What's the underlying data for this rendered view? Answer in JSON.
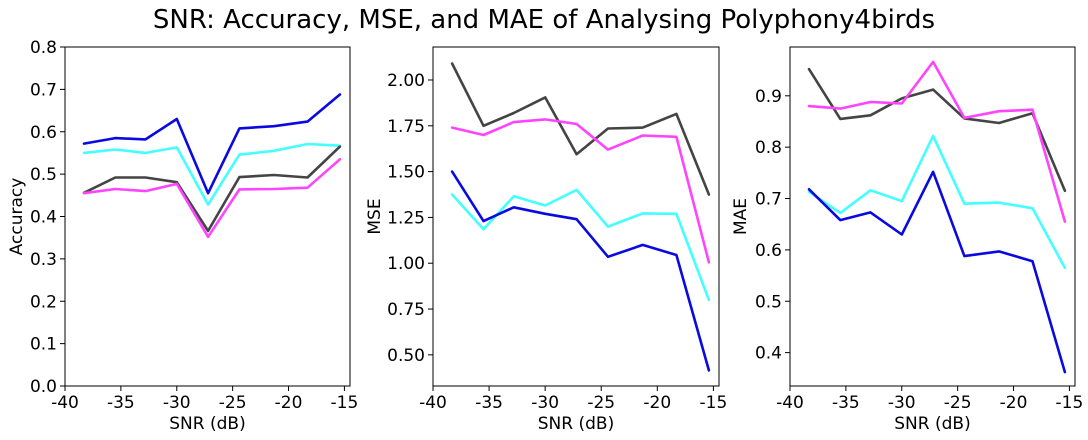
{
  "figure": {
    "title": "SNR: Accuracy, MSE, and MAE of Analysing Polyphony4birds"
  },
  "chart_data": [
    {
      "type": "line",
      "xlabel": "SNR (dB)",
      "ylabel": "Accuracy",
      "xlim": [
        -40,
        -14.5
      ],
      "ylim": [
        0.0,
        0.8
      ],
      "xticks": [
        -40,
        -35,
        -30,
        -25,
        -20,
        -15
      ],
      "xtick_labels": [
        "-40",
        "-35",
        "-30",
        "-25",
        "-20",
        "-15"
      ],
      "yticks": [
        0.0,
        0.1,
        0.2,
        0.3,
        0.4,
        0.5,
        0.6,
        0.7,
        0.8
      ],
      "ytick_labels": [
        "0.0",
        "0.1",
        "0.2",
        "0.3",
        "0.4",
        "0.5",
        "0.6",
        "0.7",
        "0.8"
      ],
      "grid": false,
      "x": [
        -38.3,
        -35.5,
        -32.8,
        -30.0,
        -27.2,
        -24.4,
        -21.3,
        -18.3,
        -15.4
      ],
      "series": [
        {
          "color": "#0a0ae0",
          "values": [
            0.572,
            0.585,
            0.582,
            0.63,
            0.455,
            0.608,
            0.613,
            0.624,
            0.688
          ]
        },
        {
          "color": "#44ffff",
          "values": [
            0.55,
            0.558,
            0.55,
            0.563,
            0.428,
            0.546,
            0.555,
            0.571,
            0.567
          ]
        },
        {
          "color": "#444444",
          "values": [
            0.456,
            0.492,
            0.492,
            0.481,
            0.366,
            0.493,
            0.498,
            0.492,
            0.565
          ]
        },
        {
          "color": "#ff44ff",
          "values": [
            0.455,
            0.465,
            0.46,
            0.477,
            0.352,
            0.464,
            0.465,
            0.468,
            0.535
          ]
        }
      ]
    },
    {
      "type": "line",
      "xlabel": "SNR (dB)",
      "ylabel": "MSE",
      "xlim": [
        -40,
        -14.5
      ],
      "ylim": [
        0.33,
        2.18
      ],
      "xticks": [
        -40,
        -35,
        -30,
        -25,
        -20,
        -15
      ],
      "xtick_labels": [
        "-40",
        "-35",
        "-30",
        "-25",
        "-20",
        "-15"
      ],
      "yticks": [
        0.5,
        0.75,
        1.0,
        1.25,
        1.5,
        1.75,
        2.0
      ],
      "ytick_labels": [
        "0.50",
        "0.75",
        "1.00",
        "1.25",
        "1.50",
        "1.75",
        "2.00"
      ],
      "grid": false,
      "x": [
        -38.3,
        -35.5,
        -32.8,
        -30.0,
        -27.2,
        -24.4,
        -21.3,
        -18.3,
        -15.4
      ],
      "series": [
        {
          "color": "#444444",
          "values": [
            2.09,
            1.75,
            1.82,
            1.905,
            1.595,
            1.735,
            1.74,
            1.815,
            1.375
          ]
        },
        {
          "color": "#ff44ff",
          "values": [
            1.74,
            1.7,
            1.77,
            1.785,
            1.76,
            1.62,
            1.697,
            1.69,
            1.005
          ]
        },
        {
          "color": "#44ffff",
          "values": [
            1.375,
            1.185,
            1.365,
            1.315,
            1.4,
            1.2,
            1.272,
            1.27,
            0.8
          ]
        },
        {
          "color": "#0a0ae0",
          "values": [
            1.5,
            1.23,
            1.305,
            1.27,
            1.24,
            1.035,
            1.1,
            1.045,
            0.415
          ]
        }
      ]
    },
    {
      "type": "line",
      "xlabel": "SNR (dB)",
      "ylabel": "MAE",
      "xlim": [
        -40,
        -14.5
      ],
      "ylim": [
        0.335,
        0.995
      ],
      "xticks": [
        -40,
        -35,
        -30,
        -25,
        -20,
        -15
      ],
      "xtick_labels": [
        "-40",
        "-35",
        "-30",
        "-25",
        "-20",
        "-15"
      ],
      "yticks": [
        0.4,
        0.5,
        0.6,
        0.7,
        0.8,
        0.9
      ],
      "ytick_labels": [
        "0.4",
        "0.5",
        "0.6",
        "0.7",
        "0.8",
        "0.9"
      ],
      "grid": false,
      "x": [
        -38.3,
        -35.5,
        -32.8,
        -30.0,
        -27.2,
        -24.4,
        -21.3,
        -18.3,
        -15.4
      ],
      "series": [
        {
          "color": "#444444",
          "values": [
            0.952,
            0.855,
            0.862,
            0.895,
            0.912,
            0.856,
            0.847,
            0.866,
            0.715
          ]
        },
        {
          "color": "#ff44ff",
          "values": [
            0.88,
            0.875,
            0.888,
            0.885,
            0.966,
            0.857,
            0.87,
            0.873,
            0.655
          ]
        },
        {
          "color": "#44ffff",
          "values": [
            0.713,
            0.672,
            0.716,
            0.695,
            0.822,
            0.69,
            0.692,
            0.681,
            0.565
          ]
        },
        {
          "color": "#0a0ae0",
          "values": [
            0.718,
            0.658,
            0.673,
            0.63,
            0.752,
            0.588,
            0.597,
            0.578,
            0.362
          ]
        }
      ]
    }
  ]
}
